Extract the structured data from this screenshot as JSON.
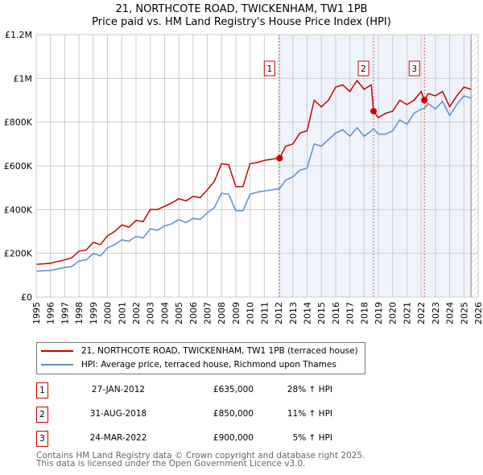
{
  "chart_data": {
    "type": "line",
    "title": "21, NORTHCOTE ROAD, TWICKENHAM, TW1 1PB",
    "subtitle": "Price paid vs. HM Land Registry's House Price Index (HPI)",
    "xlim": [
      1995,
      2026
    ],
    "ylim": [
      0,
      1200000
    ],
    "x_ticks": [
      "1995",
      "1996",
      "1997",
      "1998",
      "1999",
      "2000",
      "2001",
      "2002",
      "2003",
      "2004",
      "2005",
      "2006",
      "2007",
      "2008",
      "2009",
      "2010",
      "2011",
      "2012",
      "2013",
      "2014",
      "2015",
      "2016",
      "2017",
      "2018",
      "2019",
      "2020",
      "2021",
      "2022",
      "2023",
      "2024",
      "2025",
      "2026"
    ],
    "y_ticks": [
      {
        "v": 0,
        "label": "£0"
      },
      {
        "v": 200000,
        "label": "£200K"
      },
      {
        "v": 400000,
        "label": "£400K"
      },
      {
        "v": 600000,
        "label": "£600K"
      },
      {
        "v": 800000,
        "label": "£800K"
      },
      {
        "v": 1000000,
        "label": "£1M"
      },
      {
        "v": 1200000,
        "label": "£1.2M"
      }
    ],
    "series": [
      {
        "name": "21, NORTHCOTE ROAD, TWICKENHAM, TW1 1PB (terraced house)",
        "color": "#cc0000",
        "x": [
          1995,
          1995.5,
          1996,
          1997,
          1997.5,
          1998,
          1998.5,
          1999,
          1999.5,
          2000,
          2000.5,
          2001,
          2001.5,
          2002,
          2002.5,
          2003,
          2003.5,
          2004,
          2004.5,
          2005,
          2005.5,
          2006,
          2006.5,
          2007,
          2007.5,
          2008,
          2008.5,
          2009,
          2009.5,
          2010,
          2010.5,
          2011,
          2011.5,
          2012.07,
          2012.5,
          2013,
          2013.5,
          2014,
          2014.5,
          2015,
          2015.5,
          2016,
          2016.5,
          2017,
          2017.5,
          2018,
          2018.5,
          2018.66,
          2019,
          2019.5,
          2020,
          2020.5,
          2021,
          2021.5,
          2022,
          2022.23,
          2022.5,
          2023,
          2023.5,
          2024,
          2024.5,
          2025,
          2025.5
        ],
        "y": [
          150000,
          152000,
          155000,
          170000,
          180000,
          210000,
          215000,
          250000,
          240000,
          280000,
          300000,
          330000,
          320000,
          350000,
          345000,
          400000,
          400000,
          415000,
          430000,
          450000,
          440000,
          460000,
          455000,
          490000,
          530000,
          610000,
          605000,
          505000,
          505000,
          610000,
          615000,
          625000,
          630000,
          635000,
          690000,
          700000,
          750000,
          760000,
          900000,
          870000,
          900000,
          960000,
          970000,
          940000,
          990000,
          950000,
          970000,
          850000,
          820000,
          840000,
          850000,
          900000,
          880000,
          900000,
          940000,
          900000,
          930000,
          920000,
          940000,
          870000,
          920000,
          960000,
          950000
        ]
      },
      {
        "name": "HPI: Average price, terraced house, Richmond upon Thames",
        "color": "#5b8fd0",
        "x": [
          1995,
          1995.5,
          1996,
          1997,
          1997.5,
          1998,
          1998.5,
          1999,
          1999.5,
          2000,
          2000.5,
          2001,
          2001.5,
          2002,
          2002.5,
          2003,
          2003.5,
          2004,
          2004.5,
          2005,
          2005.5,
          2006,
          2006.5,
          2007,
          2007.5,
          2008,
          2008.5,
          2009,
          2009.5,
          2010,
          2010.5,
          2011,
          2011.5,
          2012.07,
          2012.5,
          2013,
          2013.5,
          2014,
          2014.5,
          2015,
          2015.5,
          2016,
          2016.5,
          2017,
          2017.5,
          2018,
          2018.5,
          2018.66,
          2019,
          2019.5,
          2020,
          2020.5,
          2021,
          2021.5,
          2022,
          2022.23,
          2022.5,
          2023,
          2023.5,
          2024,
          2024.5,
          2025,
          2025.5
        ],
        "y": [
          118000,
          120000,
          122000,
          135000,
          140000,
          165000,
          170000,
          200000,
          188000,
          225000,
          240000,
          262000,
          255000,
          278000,
          270000,
          312000,
          305000,
          325000,
          335000,
          355000,
          340000,
          360000,
          355000,
          385000,
          410000,
          475000,
          470000,
          395000,
          395000,
          470000,
          480000,
          485000,
          490000,
          496000,
          535000,
          550000,
          580000,
          590000,
          700000,
          690000,
          720000,
          750000,
          765000,
          735000,
          775000,
          735000,
          760000,
          770000,
          745000,
          745000,
          760000,
          810000,
          790000,
          840000,
          860000,
          863000,
          885000,
          860000,
          895000,
          830000,
          880000,
          920000,
          910000
        ]
      }
    ],
    "sales": [
      {
        "id": "1",
        "x": 2012.07,
        "y": 635000
      },
      {
        "id": "2",
        "x": 2018.66,
        "y": 850000
      },
      {
        "id": "3",
        "x": 2022.23,
        "y": 900000
      }
    ],
    "shade_from": 2012.07,
    "present": 2025.5,
    "legend": "below"
  },
  "table": [
    {
      "id": "1",
      "date": "27-JAN-2012",
      "price": "£635,000",
      "hpi": "28% ↑ HPI"
    },
    {
      "id": "2",
      "date": "31-AUG-2018",
      "price": "£850,000",
      "hpi": "11% ↑ HPI"
    },
    {
      "id": "3",
      "date": "24-MAR-2022",
      "price": "£900,000",
      "hpi": "5% ↑ HPI"
    }
  ],
  "footer": [
    "Contains HM Land Registry data © Crown copyright and database right 2025.",
    "This data is licensed under the Open Government Licence v3.0."
  ]
}
